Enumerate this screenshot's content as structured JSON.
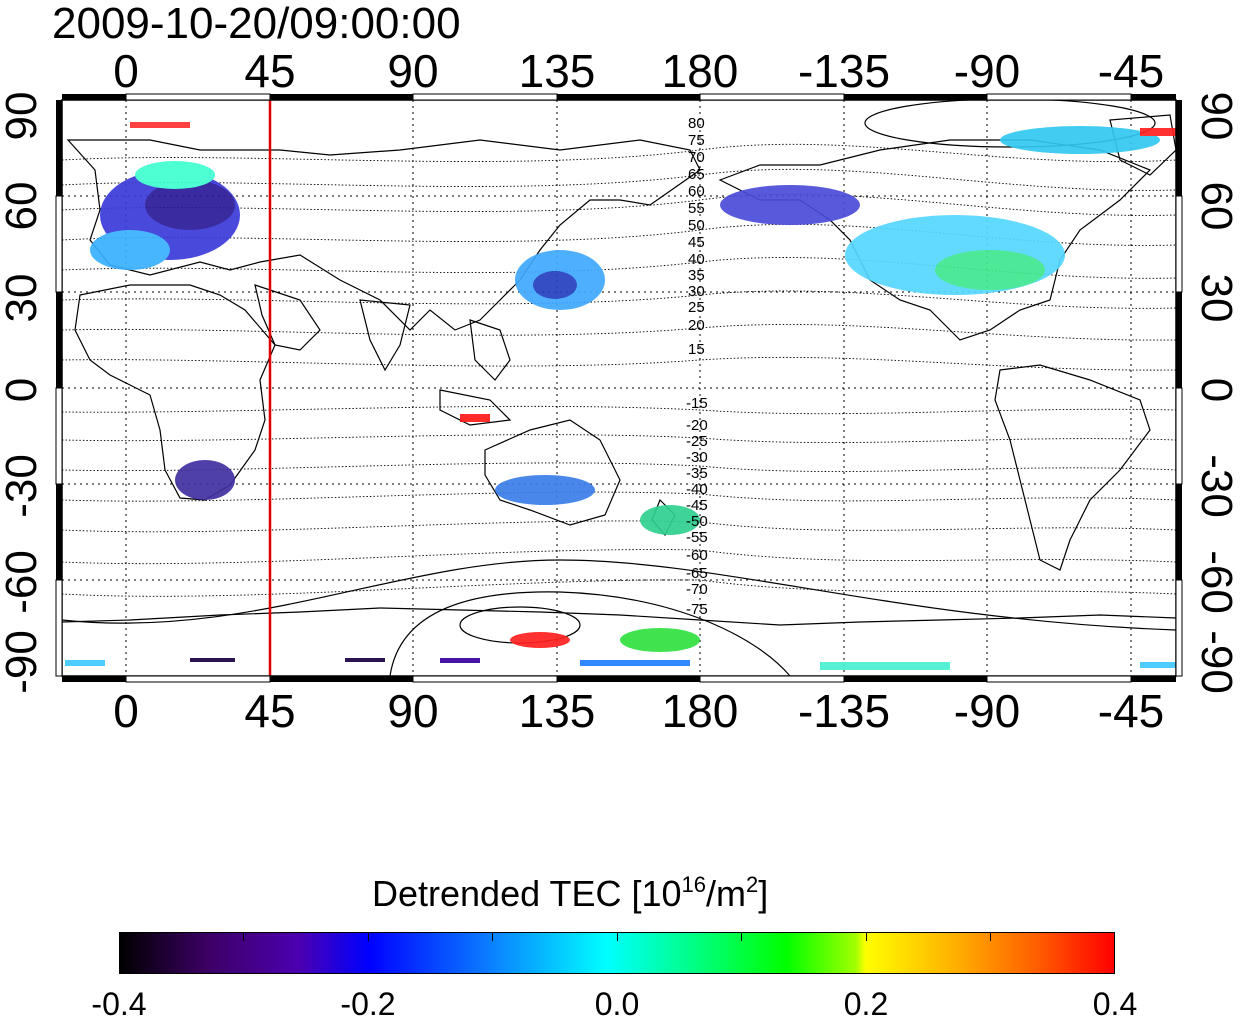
{
  "title": "2009-10-20/09:00:00",
  "map": {
    "lon_ticks_top": [
      "0",
      "45",
      "90",
      "135",
      "180",
      "-135",
      "-90",
      "-45"
    ],
    "lon_ticks_bottom": [
      "0",
      "45",
      "90",
      "135",
      "180",
      "-135",
      "-90",
      "-45"
    ],
    "lat_ticks_left": [
      "90",
      "60",
      "30",
      "0",
      "-30",
      "-60",
      "-90"
    ],
    "lat_ticks_right": [
      "90",
      "60",
      "30",
      "0",
      "-30",
      "-60",
      "-90"
    ],
    "lon_range": [
      -20,
      330
    ],
    "lat_range": [
      -90,
      90
    ],
    "gridlines": "dotted",
    "marker_line": {
      "longitude": 45,
      "color": "#e00000"
    },
    "contour_labels_north": [
      "80",
      "75",
      "70",
      "65",
      "60",
      "55",
      "50",
      "45",
      "40",
      "35",
      "30",
      "25",
      "20",
      "15"
    ],
    "contour_labels_south": [
      "-15",
      "-20",
      "-25",
      "-30",
      "-35",
      "-40",
      "-45",
      "-50",
      "-55",
      "-60",
      "-65",
      "-70",
      "-75"
    ]
  },
  "colorbar": {
    "title_prefix": "Detrended TEC  [10",
    "title_exp1": "16",
    "title_mid": "/m",
    "title_exp2": "2",
    "title_suffix": "]",
    "min": -0.4,
    "max": 0.4,
    "tick_labels": [
      "-0.4",
      "-0.2",
      "0.0",
      "0.2",
      "0.4"
    ],
    "colormap": "black-purple-blue-cyan-green-yellow-red"
  }
}
